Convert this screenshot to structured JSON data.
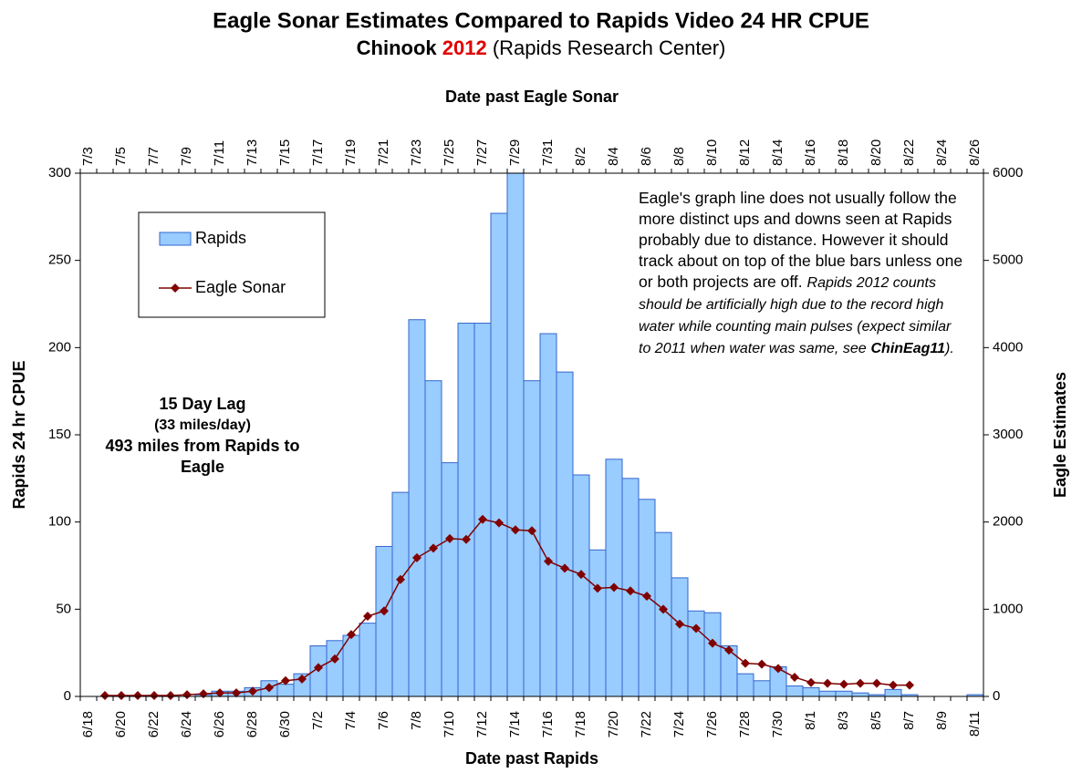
{
  "chart_data": {
    "type": "combo",
    "title": "Eagle Sonar Estimates Compared to Rapids Video 24 HR CPUE",
    "subtitle_prefix": "Chinook",
    "subtitle_year": "2012",
    "subtitle_suffix": "(Rapids Research Center)",
    "x_label": "Date past Rapids",
    "x2_label": "Date past Eagle Sonar",
    "y_label": "Rapids 24 hr CPUE",
    "y2_label": "Eagle Estimates",
    "categories": [
      "6/18",
      null,
      "6/20",
      null,
      "6/22",
      null,
      "6/24",
      null,
      "6/26",
      null,
      "6/28",
      null,
      "6/30",
      null,
      "7/2",
      null,
      "7/4",
      null,
      "7/6",
      null,
      "7/8",
      null,
      "7/10",
      null,
      "7/12",
      null,
      "7/14",
      null,
      "7/16",
      null,
      "7/18",
      null,
      "7/20",
      null,
      "7/22",
      null,
      "7/24",
      null,
      "7/26",
      null,
      "7/28",
      null,
      "7/30",
      null,
      "8/1",
      null,
      "8/3",
      null,
      "8/5",
      null,
      "8/7",
      null,
      "8/9",
      null,
      "8/11"
    ],
    "x2_categories": [
      "7/3",
      null,
      "7/5",
      null,
      "7/7",
      null,
      "7/9",
      null,
      "7/11",
      null,
      "7/13",
      null,
      "7/15",
      null,
      "7/17",
      null,
      "7/19",
      null,
      "7/21",
      null,
      "7/23",
      null,
      "7/25",
      null,
      "7/27",
      null,
      "7/29",
      null,
      "7/31",
      null,
      "8/2",
      null,
      "8/4",
      null,
      "8/6",
      null,
      "8/8",
      null,
      "8/10",
      null,
      "8/12",
      null,
      "8/14",
      null,
      "8/16",
      null,
      "8/18",
      null,
      "8/20",
      null,
      "8/22",
      null,
      "8/24",
      null,
      "8/26"
    ],
    "series": [
      {
        "name": "Rapids",
        "type": "bar",
        "color": "#99ccff",
        "edge_color": "#3366cc",
        "values": [
          0,
          0,
          0,
          0,
          0,
          0,
          0,
          1,
          3,
          3,
          5,
          9,
          7,
          13,
          29,
          32,
          35,
          42,
          86,
          117,
          216,
          181,
          134,
          214,
          214,
          277,
          300,
          181,
          208,
          186,
          127,
          84,
          136,
          125,
          113,
          94,
          68,
          49,
          48,
          29,
          13,
          9,
          17,
          6,
          5,
          3,
          3,
          2,
          1,
          4,
          1,
          0,
          0,
          0,
          1
        ]
      },
      {
        "name": "Eagle Sonar",
        "type": "line",
        "color": "#800000",
        "axis": "y2",
        "values": [
          null,
          10,
          10,
          10,
          10,
          10,
          20,
          30,
          40,
          40,
          60,
          100,
          180,
          200,
          330,
          430,
          710,
          920,
          980,
          1340,
          1590,
          1700,
          1810,
          1800,
          2030,
          1990,
          1910,
          1900,
          1550,
          1470,
          1400,
          1240,
          1250,
          1210,
          1150,
          1000,
          830,
          780,
          610,
          530,
          380,
          370,
          320,
          220,
          160,
          150,
          140,
          150,
          150,
          130,
          130,
          null,
          null,
          null,
          null
        ]
      }
    ],
    "ylim": [
      0,
      300
    ],
    "yticks": [
      0,
      50,
      100,
      150,
      200,
      250,
      300
    ],
    "y2lim": [
      0,
      6000
    ],
    "y2ticks": [
      0,
      1000,
      2000,
      3000,
      4000,
      5000,
      6000
    ],
    "lag_lines": [
      "15 Day Lag",
      "(33 miles/day)",
      "493 miles from Rapids to Eagle"
    ],
    "note_text": "Eagle's graph line does not usually follow the more distinct ups and downs seen at Rapids probably due to distance.  However it should track about on top of the blue bars unless one or both projects are off.",
    "note_italic": "Rapids 2012 counts should be artificially high due to the record high water while counting main pulses (expect similar to 2011 when water was same, see",
    "note_bold": "ChinEag11",
    "note_end": ")."
  }
}
